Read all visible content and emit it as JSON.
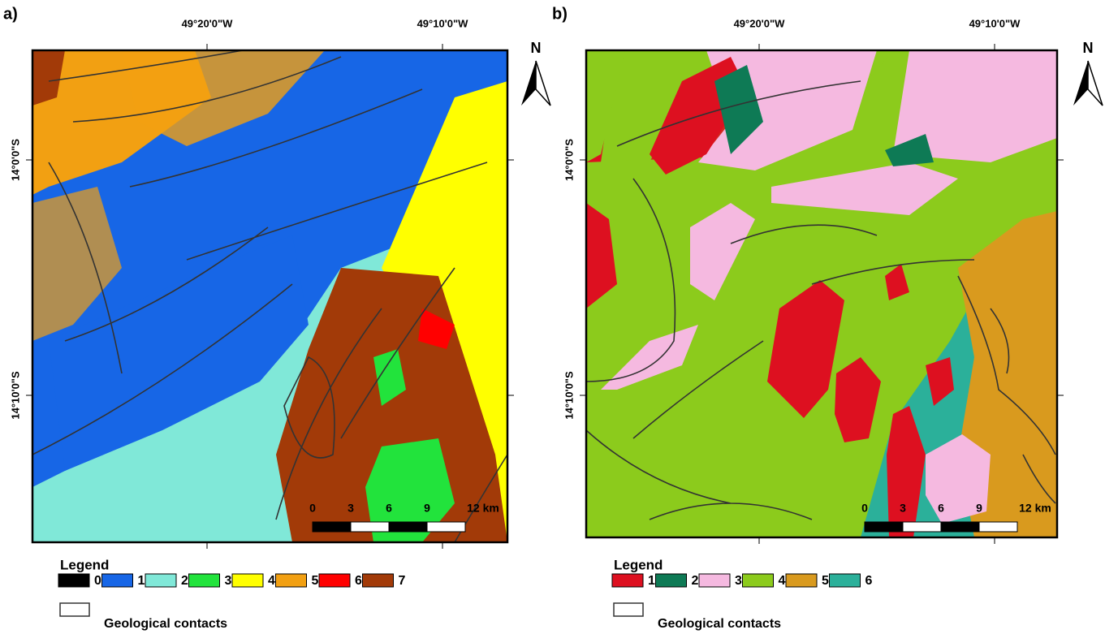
{
  "panels": [
    {
      "label": "a)",
      "lon_labels": [
        "49°20'0\"W",
        "49°10'0\"W"
      ],
      "lat_labels": [
        "14°0'0\"S",
        "14°10'0\"S"
      ],
      "north": "N",
      "scale_labels": [
        "0",
        "3",
        "6",
        "9",
        "12 km"
      ],
      "legend": {
        "title": "Legend",
        "contacts": "Geological contacts",
        "items": [
          {
            "label": "0",
            "color": "#000000"
          },
          {
            "label": "1",
            "color": "#1766e6"
          },
          {
            "label": "2",
            "color": "#80e8d8"
          },
          {
            "label": "3",
            "color": "#22e33c"
          },
          {
            "label": "4",
            "color": "#ffff00"
          },
          {
            "label": "5",
            "color": "#f2a012"
          },
          {
            "label": "6",
            "color": "#ff0000"
          },
          {
            "label": "7",
            "color": "#a23a08"
          }
        ]
      }
    },
    {
      "label": "b)",
      "lon_labels": [
        "49°20'0\"W",
        "49°10'0\"W"
      ],
      "lat_labels": [
        "14°0'0\"S",
        "14°10'0\"S"
      ],
      "north": "N",
      "scale_labels": [
        "0",
        "3",
        "6",
        "9",
        "12 km"
      ],
      "legend": {
        "title": "Legend",
        "contacts": "Geological contacts",
        "items": [
          {
            "label": "1",
            "color": "#dd1020"
          },
          {
            "label": "2",
            "color": "#0e7a55"
          },
          {
            "label": "3",
            "color": "#f5b9e0"
          },
          {
            "label": "4",
            "color": "#8ccb1c"
          },
          {
            "label": "5",
            "color": "#d99a1e"
          },
          {
            "label": "6",
            "color": "#2bb09a"
          }
        ]
      }
    }
  ]
}
